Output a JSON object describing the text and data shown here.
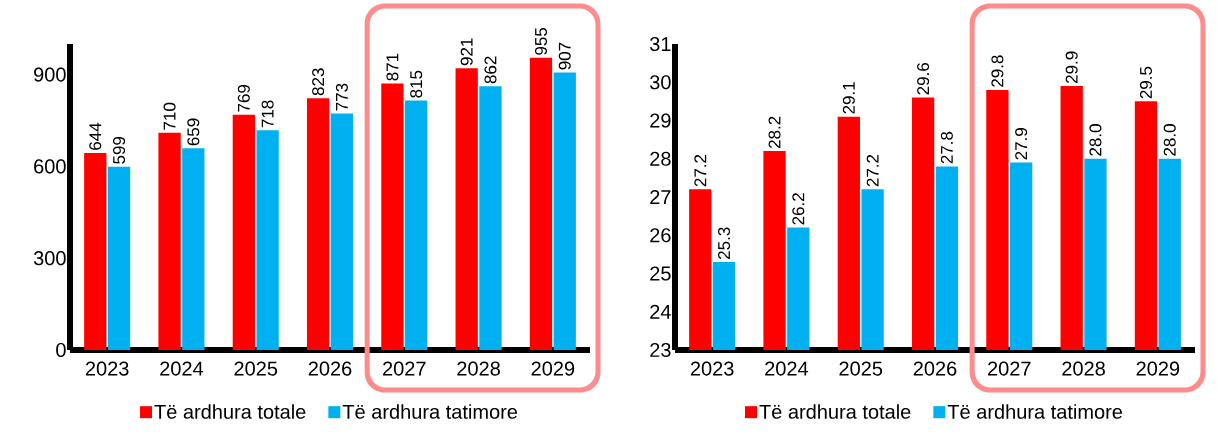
{
  "chart_data": [
    {
      "type": "bar",
      "categories": [
        "2023",
        "2024",
        "2025",
        "2026",
        "2027",
        "2028",
        "2029"
      ],
      "series": [
        {
          "name": "Të ardhura totale",
          "color": "#ff0000",
          "values": [
            644,
            710,
            769,
            823,
            871,
            921,
            955
          ],
          "value_labels": [
            "644",
            "710",
            "769",
            "823",
            "871",
            "921",
            "955"
          ]
        },
        {
          "name": "Të ardhura tatimore",
          "color": "#00b0f0",
          "values": [
            599,
            659,
            718,
            773,
            815,
            862,
            907
          ],
          "value_labels": [
            "599",
            "659",
            "718",
            "773",
            "815",
            "862",
            "907"
          ]
        }
      ],
      "ylim": [
        0,
        1000
      ],
      "yticks": [
        0,
        300,
        600,
        900
      ],
      "legend": "bottom"
    },
    {
      "type": "bar",
      "categories": [
        "2023",
        "2024",
        "2025",
        "2026",
        "2027",
        "2028",
        "2029"
      ],
      "series": [
        {
          "name": "Të ardhura totale",
          "color": "#ff0000",
          "values": [
            27.2,
            28.2,
            29.1,
            29.6,
            29.8,
            29.9,
            29.5
          ],
          "value_labels": [
            "27.2",
            "28.2",
            "29.1",
            "29.6",
            "29.8",
            "29.9",
            "29.5"
          ]
        },
        {
          "name": "Të ardhura tatimore",
          "color": "#00b0f0",
          "values": [
            25.3,
            26.2,
            27.2,
            27.8,
            27.9,
            28.0,
            28.0
          ],
          "value_labels": [
            "25.3",
            "26.2",
            "27.2",
            "27.8",
            "27.9",
            "28.0",
            "28.0"
          ]
        }
      ],
      "ylim": [
        23,
        31
      ],
      "yticks": [
        23,
        24,
        25,
        26,
        27,
        28,
        29,
        30,
        31
      ],
      "legend": "bottom"
    }
  ]
}
